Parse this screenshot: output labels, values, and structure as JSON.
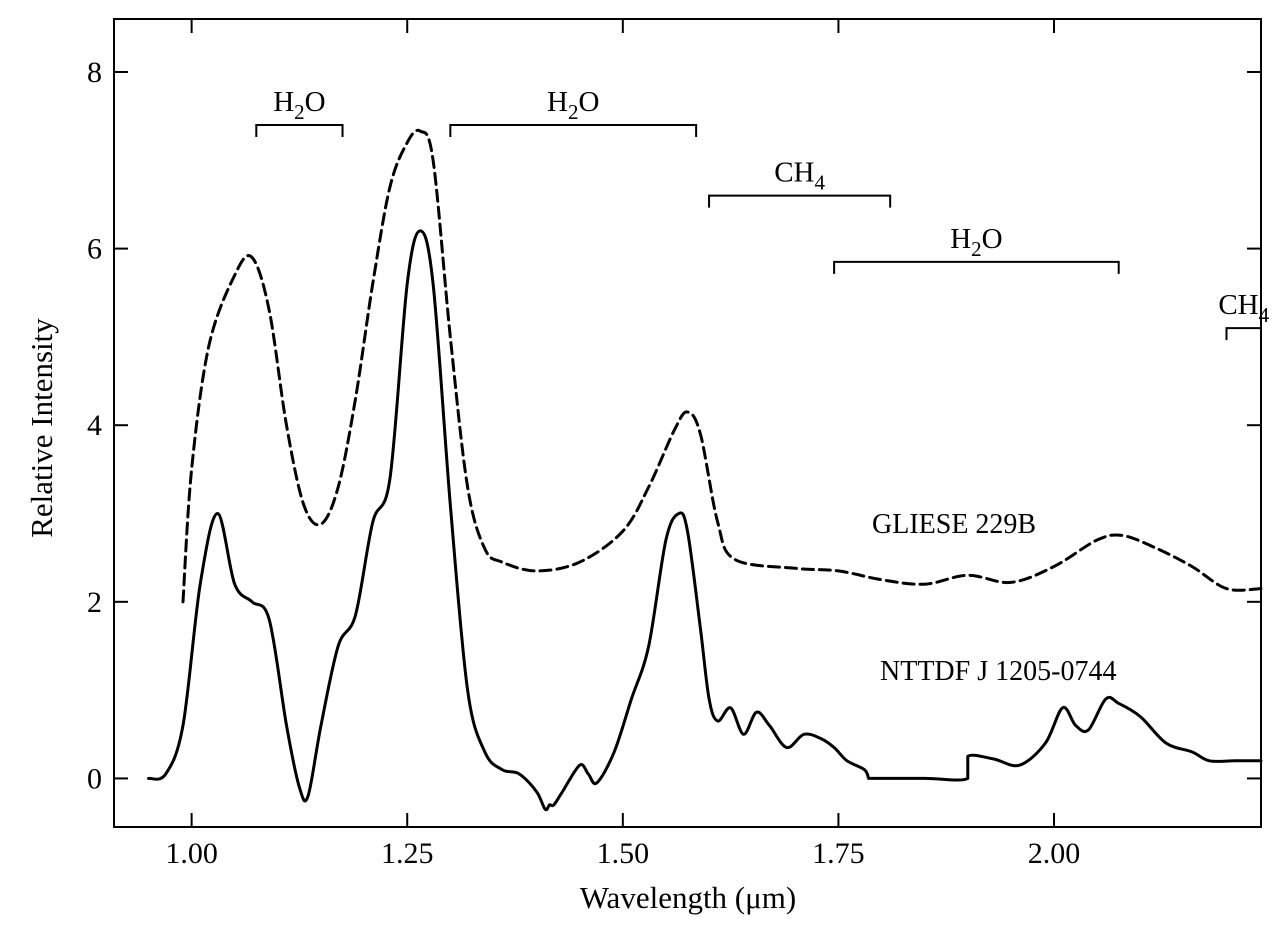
{
  "chart_data": {
    "type": "line",
    "xlabel": "Wavelength (μm)",
    "ylabel": "Relative Intensity",
    "xlim": [
      0.91,
      2.24
    ],
    "ylim": [
      -0.55,
      8.6
    ],
    "xticks": [
      1.0,
      1.25,
      1.5,
      1.75,
      2.0
    ],
    "xtick_labels": [
      "1.00",
      "1.25",
      "1.50",
      "1.75",
      "2.00"
    ],
    "yticks": [
      0,
      2,
      4,
      6,
      8
    ],
    "ytick_labels": [
      "0",
      "2",
      "4",
      "6",
      "8"
    ],
    "grid": false,
    "legend": "none (series labelled inline)",
    "series": [
      {
        "name": "GLIESE  229B",
        "style": "dashed",
        "color": "#000000",
        "x": [
          0.99,
          1.0,
          1.02,
          1.05,
          1.07,
          1.09,
          1.11,
          1.13,
          1.15,
          1.17,
          1.19,
          1.21,
          1.23,
          1.25,
          1.265,
          1.28,
          1.3,
          1.32,
          1.34,
          1.36,
          1.4,
          1.45,
          1.5,
          1.53,
          1.56,
          1.575,
          1.59,
          1.61,
          1.63,
          1.7,
          1.75,
          1.8,
          1.85,
          1.9,
          1.95,
          2.0,
          2.05,
          2.08,
          2.12,
          2.16,
          2.2,
          2.24
        ],
        "y": [
          2.0,
          3.5,
          4.9,
          5.7,
          5.9,
          5.3,
          4.0,
          3.1,
          2.88,
          3.3,
          4.3,
          5.6,
          6.7,
          7.2,
          7.33,
          7.0,
          5.0,
          3.3,
          2.6,
          2.45,
          2.35,
          2.45,
          2.8,
          3.3,
          3.95,
          4.15,
          3.9,
          2.9,
          2.48,
          2.38,
          2.35,
          2.25,
          2.2,
          2.3,
          2.22,
          2.4,
          2.7,
          2.75,
          2.6,
          2.4,
          2.15,
          2.15
        ]
      },
      {
        "name": "NTTDF  J 1205-0744",
        "style": "solid",
        "color": "#000000",
        "x": [
          0.95,
          0.97,
          0.99,
          1.01,
          1.03,
          1.05,
          1.07,
          1.09,
          1.11,
          1.125,
          1.135,
          1.15,
          1.17,
          1.19,
          1.21,
          1.23,
          1.25,
          1.265,
          1.28,
          1.3,
          1.32,
          1.34,
          1.36,
          1.38,
          1.4,
          1.41,
          1.415,
          1.42,
          1.43,
          1.45,
          1.46,
          1.47,
          1.49,
          1.51,
          1.53,
          1.55,
          1.565,
          1.575,
          1.59,
          1.6,
          1.61,
          1.625,
          1.64,
          1.655,
          1.67,
          1.69,
          1.71,
          1.73,
          1.745,
          1.76,
          1.78,
          1.785,
          1.785,
          1.85,
          1.9,
          1.9,
          1.93,
          1.96,
          1.99,
          2.01,
          2.025,
          2.04,
          2.06,
          2.075,
          2.1,
          2.13,
          2.16,
          2.18,
          2.21,
          2.24
        ],
        "y": [
          0.0,
          0.05,
          0.6,
          2.2,
          3.0,
          2.2,
          2.0,
          1.8,
          0.6,
          -0.1,
          -0.2,
          0.6,
          1.5,
          1.85,
          2.9,
          3.4,
          5.6,
          6.2,
          5.6,
          3.1,
          1.0,
          0.3,
          0.1,
          0.05,
          -0.15,
          -0.35,
          -0.3,
          -0.3,
          -0.15,
          0.15,
          0.05,
          -0.05,
          0.3,
          0.9,
          1.5,
          2.7,
          3.0,
          2.8,
          1.7,
          0.9,
          0.65,
          0.8,
          0.5,
          0.75,
          0.6,
          0.35,
          0.5,
          0.45,
          0.35,
          0.2,
          0.1,
          0.0,
          0.0,
          0.0,
          0.0,
          0.25,
          0.22,
          0.15,
          0.4,
          0.8,
          0.6,
          0.55,
          0.9,
          0.85,
          0.7,
          0.4,
          0.3,
          0.2,
          0.2,
          0.2
        ]
      }
    ],
    "annotations": {
      "bands": [
        {
          "label": "H",
          "sub": "2",
          "suffix": "O",
          "x0": 1.075,
          "x1": 1.175,
          "y": 7.4
        },
        {
          "label": "H",
          "sub": "2",
          "suffix": "O",
          "x0": 1.3,
          "x1": 1.585,
          "y": 7.4
        },
        {
          "label": "CH",
          "sub": "4",
          "suffix": "",
          "x0": 1.6,
          "x1": 1.81,
          "y": 6.6
        },
        {
          "label": "H",
          "sub": "2",
          "suffix": "O",
          "x0": 1.745,
          "x1": 2.075,
          "y": 5.85
        },
        {
          "label": "CH",
          "sub": "4",
          "suffix": "",
          "x0": 2.2,
          "x1": 2.24,
          "y": 5.1
        }
      ]
    }
  }
}
